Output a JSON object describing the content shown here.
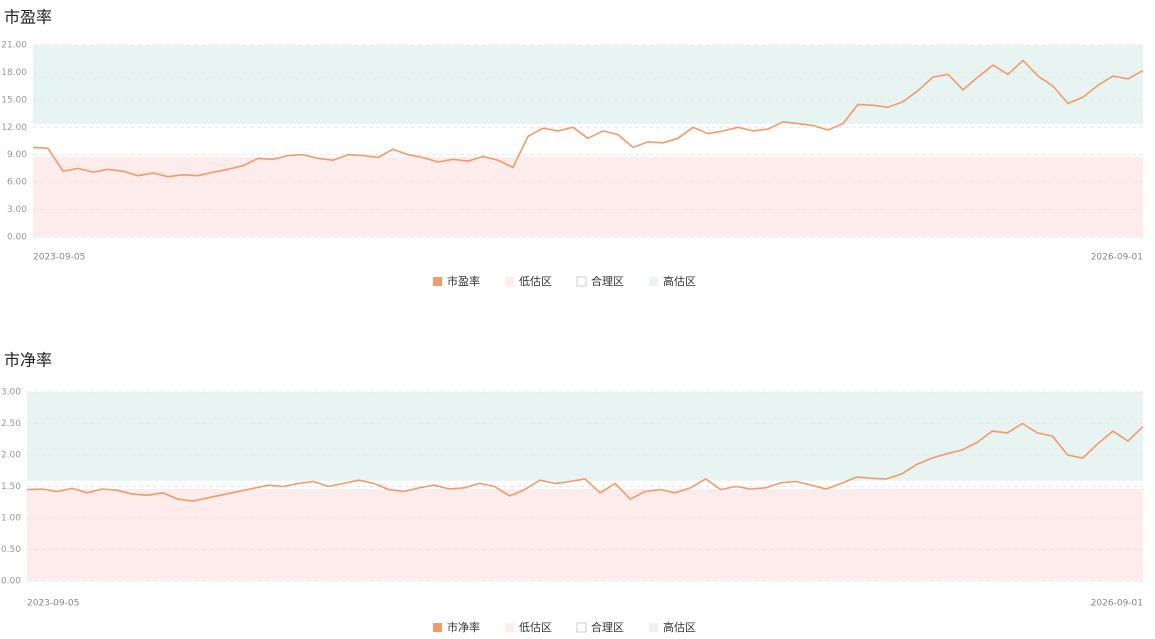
{
  "chart_data": [
    {
      "type": "line",
      "title": "市盈率",
      "categories": [
        "2023-09-05",
        null,
        null,
        null,
        null,
        null,
        null,
        null,
        null,
        null,
        null,
        null,
        null,
        null,
        null,
        null,
        null,
        null,
        null,
        null,
        null,
        null,
        null,
        null,
        null,
        null,
        null,
        null,
        null,
        null,
        null,
        null,
        null,
        null,
        null,
        null,
        null,
        null,
        null,
        null,
        null,
        null,
        null,
        null,
        null,
        null,
        null,
        null,
        null,
        null,
        null,
        null,
        null,
        null,
        null,
        null,
        null,
        null,
        null,
        null,
        null,
        null,
        null,
        null,
        null,
        null,
        null,
        null,
        null,
        null,
        null,
        null,
        null,
        null,
        "2026-09-01"
      ],
      "series": [
        {
          "name": "市盈率",
          "color": "#f4996b",
          "values": [
            9.8,
            9.7,
            7.2,
            7.5,
            7.1,
            7.4,
            7.2,
            6.7,
            7.0,
            6.6,
            6.8,
            6.7,
            7.1,
            7.4,
            7.8,
            8.6,
            8.5,
            8.9,
            9.0,
            8.6,
            8.4,
            9.0,
            8.9,
            8.7,
            9.6,
            9.0,
            8.7,
            8.2,
            8.5,
            8.3,
            8.8,
            8.4,
            7.6,
            11.0,
            11.9,
            11.6,
            12.0,
            10.8,
            11.6,
            11.2,
            9.8,
            10.4,
            10.3,
            10.8,
            12.0,
            11.3,
            11.6,
            12.0,
            11.6,
            11.8,
            12.6,
            12.4,
            12.2,
            11.7,
            12.4,
            14.5,
            14.4,
            14.2,
            14.8,
            16.0,
            17.5,
            17.8,
            16.1,
            17.5,
            18.8,
            17.8,
            19.3,
            17.6,
            16.5,
            14.6,
            15.3,
            16.6,
            17.6,
            17.3,
            18.2
          ]
        }
      ],
      "bands": [
        {
          "name": "低估区",
          "color": "#fdecec",
          "range": [
            0,
            8.75
          ]
        },
        {
          "name": "合理区",
          "color": "#ffffff",
          "range": [
            8.75,
            12.36
          ]
        },
        {
          "name": "高估区",
          "color": "#e8f4f1",
          "range": [
            12.36,
            21
          ]
        }
      ],
      "ylim": [
        0,
        21
      ],
      "yticks": [
        {
          "value": 0,
          "label": "0.00"
        },
        {
          "value": 3,
          "label": "3.00"
        },
        {
          "value": 6,
          "label": "6.00"
        },
        {
          "value": 9,
          "label": "9.00"
        },
        {
          "value": 12,
          "label": "12.00"
        },
        {
          "value": 15,
          "label": "15.00"
        },
        {
          "value": 18,
          "label": "18.00"
        },
        {
          "value": 21,
          "label": "21.00"
        }
      ],
      "grid": true
    },
    {
      "type": "line",
      "title": "市净率",
      "categories": [
        "2023-09-05",
        null,
        null,
        null,
        null,
        null,
        null,
        null,
        null,
        null,
        null,
        null,
        null,
        null,
        null,
        null,
        null,
        null,
        null,
        null,
        null,
        null,
        null,
        null,
        null,
        null,
        null,
        null,
        null,
        null,
        null,
        null,
        null,
        null,
        null,
        null,
        null,
        null,
        null,
        null,
        null,
        null,
        null,
        null,
        null,
        null,
        null,
        null,
        null,
        null,
        null,
        null,
        null,
        null,
        null,
        null,
        null,
        null,
        null,
        null,
        null,
        null,
        null,
        null,
        null,
        null,
        null,
        null,
        null,
        null,
        null,
        null,
        null,
        null,
        "2026-09-01"
      ],
      "series": [
        {
          "name": "市净率",
          "color": "#f4996b",
          "values": [
            1.45,
            1.46,
            1.42,
            1.47,
            1.4,
            1.46,
            1.44,
            1.38,
            1.36,
            1.4,
            1.3,
            1.27,
            1.32,
            1.37,
            1.42,
            1.47,
            1.52,
            1.5,
            1.55,
            1.58,
            1.5,
            1.55,
            1.6,
            1.55,
            1.45,
            1.42,
            1.48,
            1.52,
            1.46,
            1.48,
            1.55,
            1.5,
            1.35,
            1.45,
            1.6,
            1.55,
            1.58,
            1.62,
            1.4,
            1.55,
            1.3,
            1.42,
            1.45,
            1.4,
            1.48,
            1.62,
            1.45,
            1.5,
            1.46,
            1.48,
            1.56,
            1.58,
            1.52,
            1.46,
            1.55,
            1.65,
            1.63,
            1.62,
            1.7,
            1.85,
            1.95,
            2.02,
            2.08,
            2.2,
            2.38,
            2.35,
            2.5,
            2.35,
            2.3,
            2.0,
            1.95,
            2.18,
            2.38,
            2.22,
            2.45
          ]
        }
      ],
      "bands": [
        {
          "name": "低估区",
          "color": "#fdecec",
          "range": [
            0,
            1.46
          ]
        },
        {
          "name": "合理区",
          "color": "#ffffff",
          "range": [
            1.46,
            1.59
          ]
        },
        {
          "name": "高估区",
          "color": "#e8f4f1",
          "range": [
            1.59,
            3
          ]
        }
      ],
      "ylim": [
        0,
        3
      ],
      "yticks": [
        {
          "value": 0,
          "label": "0.00"
        },
        {
          "value": 0.5,
          "label": "0.50"
        },
        {
          "value": 1,
          "label": "1.00"
        },
        {
          "value": 1.5,
          "label": "1.50"
        },
        {
          "value": 2,
          "label": "2.00"
        },
        {
          "value": 2.5,
          "label": "2.50"
        },
        {
          "value": 3,
          "label": "3.00"
        }
      ],
      "grid": true
    }
  ]
}
